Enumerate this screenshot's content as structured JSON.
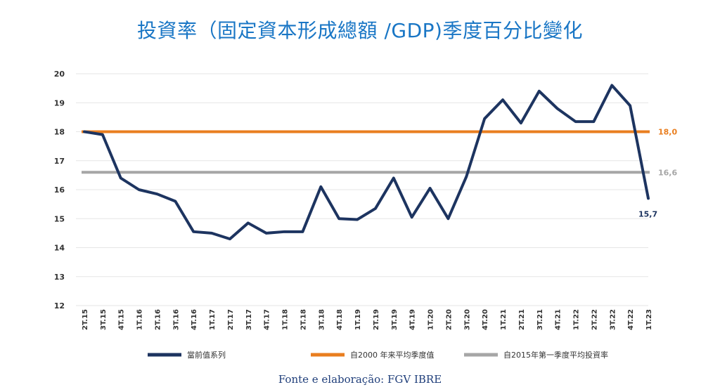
{
  "title": "投資率（固定資本形成總額 /GDP)季度百分比變化",
  "source": "Fonte e elaboração: FGV IBRE",
  "colors": {
    "series": "#1d3460",
    "avg2000": "#e97e1f",
    "avg2015": "#a6a6a6",
    "title": "#1976c5",
    "grid": "#e6e6e6"
  },
  "chart_data": {
    "type": "line",
    "ylim": [
      12,
      20
    ],
    "yticks": [
      12,
      13,
      14,
      15,
      16,
      17,
      18,
      19,
      20
    ],
    "grid": true,
    "legend_position": "bottom",
    "categories": [
      "2T.15",
      "3T.15",
      "4T.15",
      "1T.16",
      "2T.16",
      "3T.16",
      "4T.16",
      "1T.17",
      "2T.17",
      "3T.17",
      "4T.17",
      "1T.18",
      "2T.18",
      "3T.18",
      "4T.18",
      "1T.19",
      "2T.19",
      "3T.19",
      "4T.19",
      "1T.20",
      "2T.20",
      "3T.20",
      "4T.20",
      "1T.21",
      "2T.21",
      "3T.21",
      "4T.21",
      "1T.22",
      "2T.22",
      "3T.22",
      "4T.22",
      "1T.23"
    ],
    "series": [
      {
        "name": "當前值系列",
        "values": [
          18.0,
          17.9,
          16.4,
          16.0,
          15.85,
          15.6,
          14.55,
          14.5,
          14.3,
          14.85,
          14.5,
          14.55,
          14.55,
          16.1,
          15.0,
          14.97,
          15.35,
          16.4,
          15.05,
          16.05,
          15.0,
          16.45,
          18.45,
          19.1,
          18.3,
          19.4,
          18.8,
          18.35,
          18.35,
          19.6,
          18.9,
          15.7
        ],
        "end_label": "15,7"
      },
      {
        "name": "自2000 年来平均季度值",
        "constant": 18.0,
        "end_label": "18,0"
      },
      {
        "name": "自2015年第一季度平均投資率",
        "constant": 16.6,
        "end_label": "16,6"
      }
    ]
  }
}
